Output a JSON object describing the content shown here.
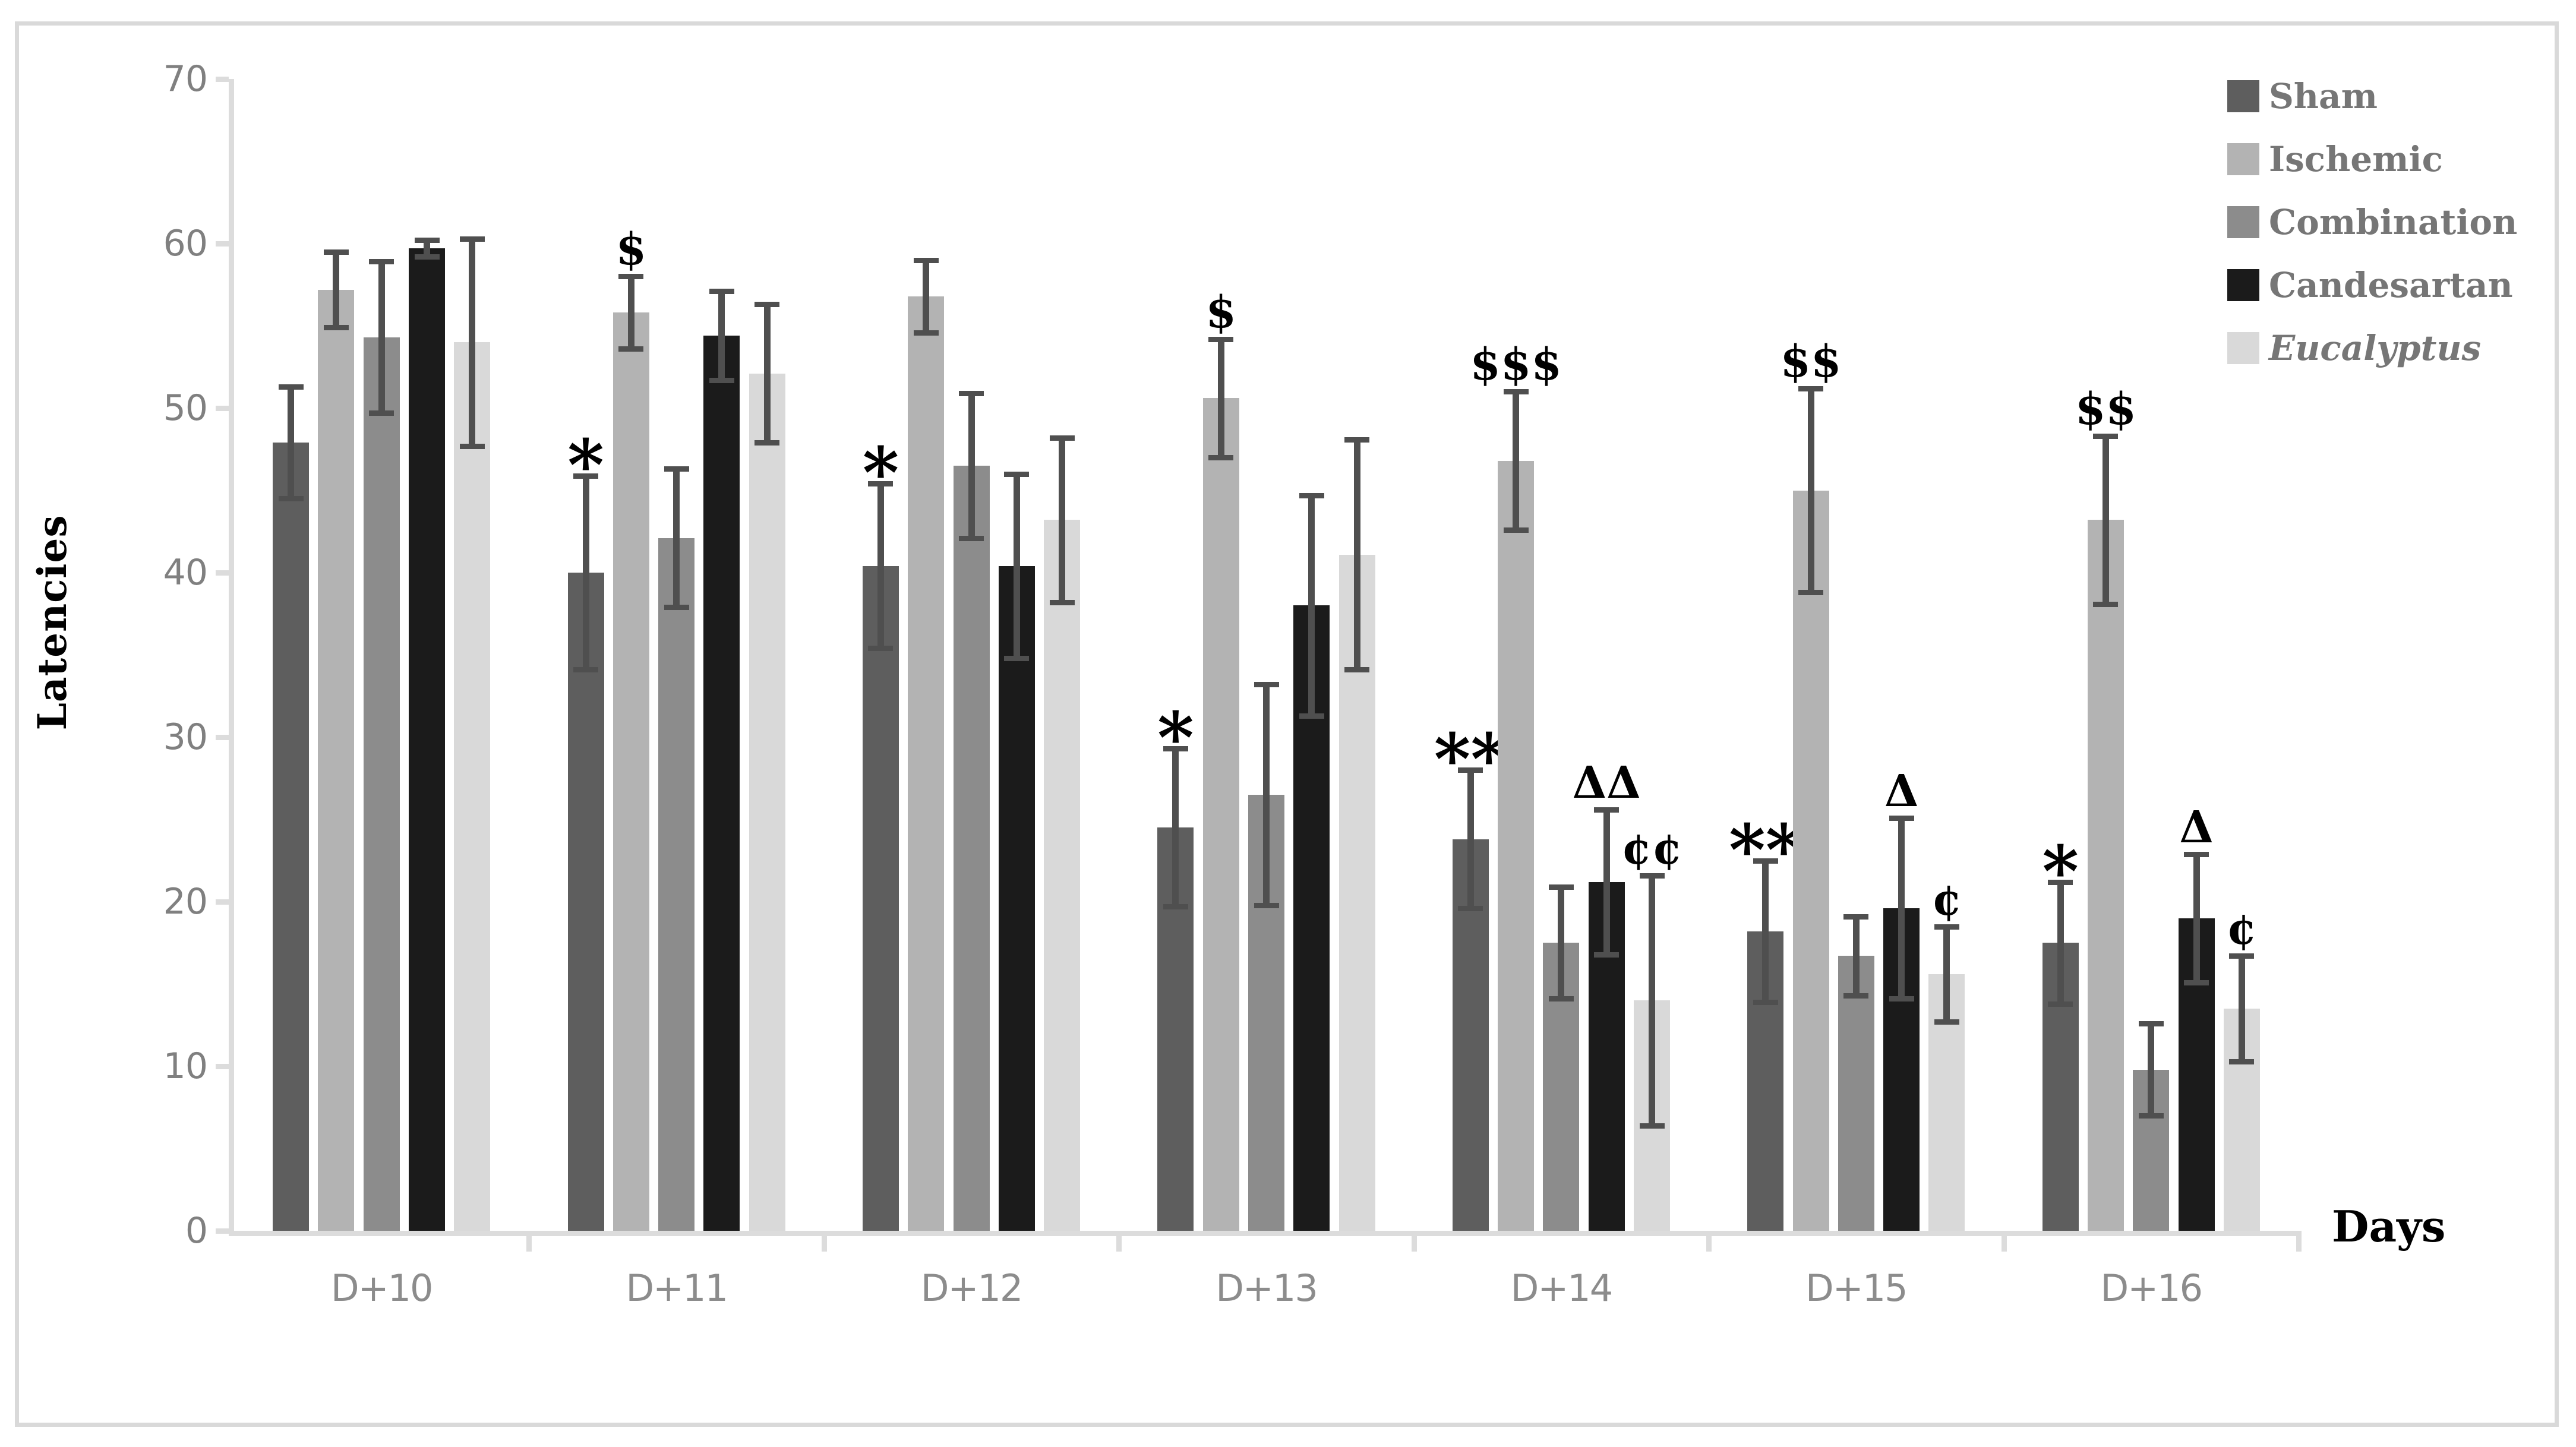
{
  "figure": {
    "background": "#ffffff",
    "border_color": "#d9d9d9",
    "axis_color": "#dcdcdc",
    "tick_label_color": "#808080",
    "category_label_color": "#8c8c8c",
    "legend_text_color": "#767676",
    "error_bar_color": "#4f4f4f",
    "annotation_color": "#000000"
  },
  "chart_data": {
    "type": "bar",
    "title": "",
    "xlabel": "Days",
    "ylabel": "Latencies",
    "ylim": [
      0,
      70
    ],
    "yticks": [
      0,
      10,
      20,
      30,
      40,
      50,
      60,
      70
    ],
    "grid": false,
    "legend_position": "top-right",
    "error_bars": true,
    "categories": [
      "D+10",
      "D+11",
      "D+12",
      "D+13",
      "D+14",
      "D+15",
      "D+16"
    ],
    "series": [
      {
        "name": "Sham",
        "color": "#5e5e5e",
        "italic": false,
        "values": [
          47.9,
          40.0,
          40.4,
          24.5,
          23.8,
          18.2,
          17.5
        ],
        "errors": [
          3.4,
          5.9,
          5.0,
          4.8,
          4.2,
          4.3,
          3.7
        ],
        "annotations": [
          "",
          "*",
          "*",
          "*",
          "**",
          "**",
          "*"
        ]
      },
      {
        "name": "Ischemic",
        "color": "#b3b3b3",
        "italic": false,
        "values": [
          57.2,
          55.8,
          56.8,
          50.6,
          46.8,
          45.0,
          43.2
        ],
        "errors": [
          2.3,
          2.2,
          2.2,
          3.6,
          4.2,
          6.2,
          5.1
        ],
        "annotations": [
          "",
          "$",
          "",
          "$",
          "$$$",
          "$$",
          "$$"
        ]
      },
      {
        "name": "Combination",
        "color": "#8c8c8c",
        "italic": false,
        "values": [
          54.3,
          42.1,
          46.5,
          26.5,
          17.5,
          16.7,
          9.8
        ],
        "errors": [
          4.6,
          4.2,
          4.4,
          6.7,
          3.4,
          2.4,
          2.8
        ],
        "annotations": [
          "",
          "",
          "",
          "",
          "",
          "",
          ""
        ]
      },
      {
        "name": "Candesartan",
        "color": "#1b1b1b",
        "italic": false,
        "values": [
          59.7,
          54.4,
          40.4,
          38.0,
          21.2,
          19.6,
          19.0
        ],
        "errors": [
          0.5,
          2.7,
          5.6,
          6.7,
          4.4,
          5.5,
          3.9
        ],
        "annotations": [
          "",
          "",
          "",
          "",
          "ΔΔ",
          "Δ",
          "Δ"
        ]
      },
      {
        "name": "Eucalyptus",
        "color": "#d9d9d9",
        "italic": true,
        "values": [
          54.0,
          52.1,
          43.2,
          41.1,
          14.0,
          15.6,
          13.5
        ],
        "errors": [
          6.3,
          4.2,
          5.0,
          7.0,
          7.6,
          2.9,
          3.2
        ],
        "annotations": [
          "",
          "",
          "",
          "",
          "¢¢",
          "¢",
          "¢"
        ]
      }
    ]
  }
}
